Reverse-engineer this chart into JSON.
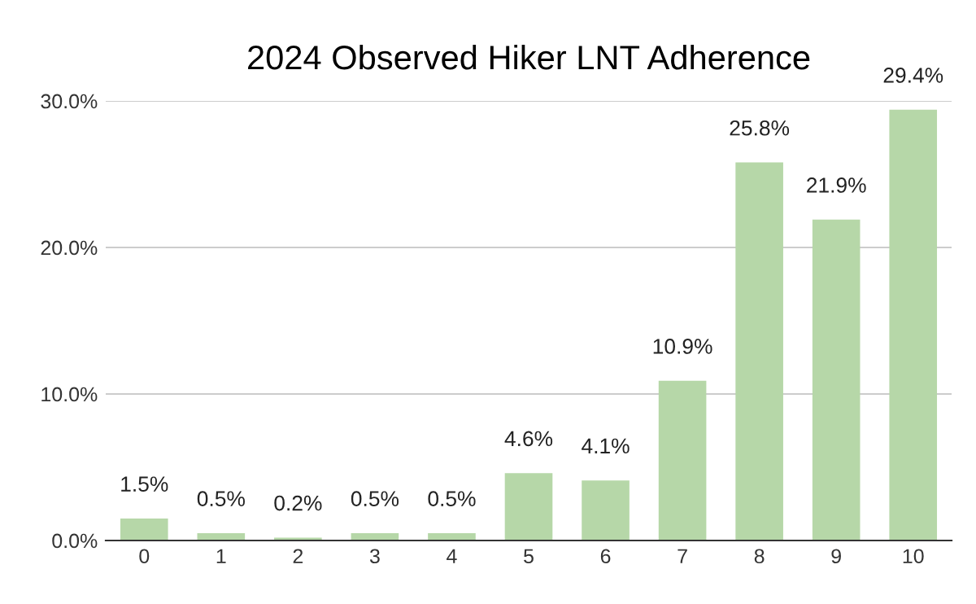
{
  "chart_data": {
    "type": "bar",
    "title": "2024 Observed Hiker LNT Adherence",
    "categories": [
      "0",
      "1",
      "2",
      "3",
      "4",
      "5",
      "6",
      "7",
      "8",
      "9",
      "10"
    ],
    "values": [
      1.5,
      0.5,
      0.2,
      0.5,
      0.5,
      4.6,
      4.1,
      10.9,
      25.8,
      21.9,
      29.4
    ],
    "value_labels": [
      "1.5%",
      "0.5%",
      "0.2%",
      "0.5%",
      "0.5%",
      "4.6%",
      "4.1%",
      "10.9%",
      "25.8%",
      "21.9%",
      "29.4%"
    ],
    "color": "#b6d7a8",
    "ylim": [
      0,
      30
    ],
    "yticks": [
      {
        "value": 0,
        "label": "0.0%"
      },
      {
        "value": 10,
        "label": "10.0%"
      },
      {
        "value": 20,
        "label": "20.0%"
      },
      {
        "value": 30,
        "label": "30.0%"
      }
    ],
    "grid": "y",
    "legend": false
  }
}
